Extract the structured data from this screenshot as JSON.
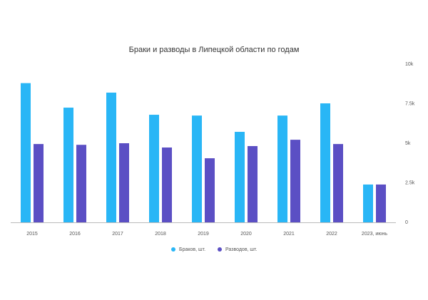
{
  "chart_data": {
    "type": "bar",
    "title": "Браки и разводы в Липецкой области по годам",
    "categories": [
      "2015",
      "2016",
      "2017",
      "2018",
      "2019",
      "2020",
      "2021",
      "2022",
      "2023, июнь"
    ],
    "series": [
      {
        "name": "Браков, шт.",
        "color": "#29b6f6",
        "values": [
          8800,
          7250,
          8200,
          6800,
          6750,
          5720,
          6750,
          7520,
          2390
        ]
      },
      {
        "name": "Разводов, шт.",
        "color": "#5b4fc4",
        "values": [
          4950,
          4900,
          5000,
          4730,
          4050,
          4820,
          5220,
          4950,
          2390
        ]
      }
    ],
    "ylim": [
      0,
      10000
    ],
    "yticks": [
      0,
      {
        "value": 2500,
        "label": "2.5k"
      },
      {
        "value": 5000,
        "label": "5k"
      },
      {
        "value": 7500,
        "label": "7.5k"
      },
      {
        "value": 10000,
        "label": "10k"
      }
    ],
    "grid": false,
    "legend": "bottom"
  }
}
